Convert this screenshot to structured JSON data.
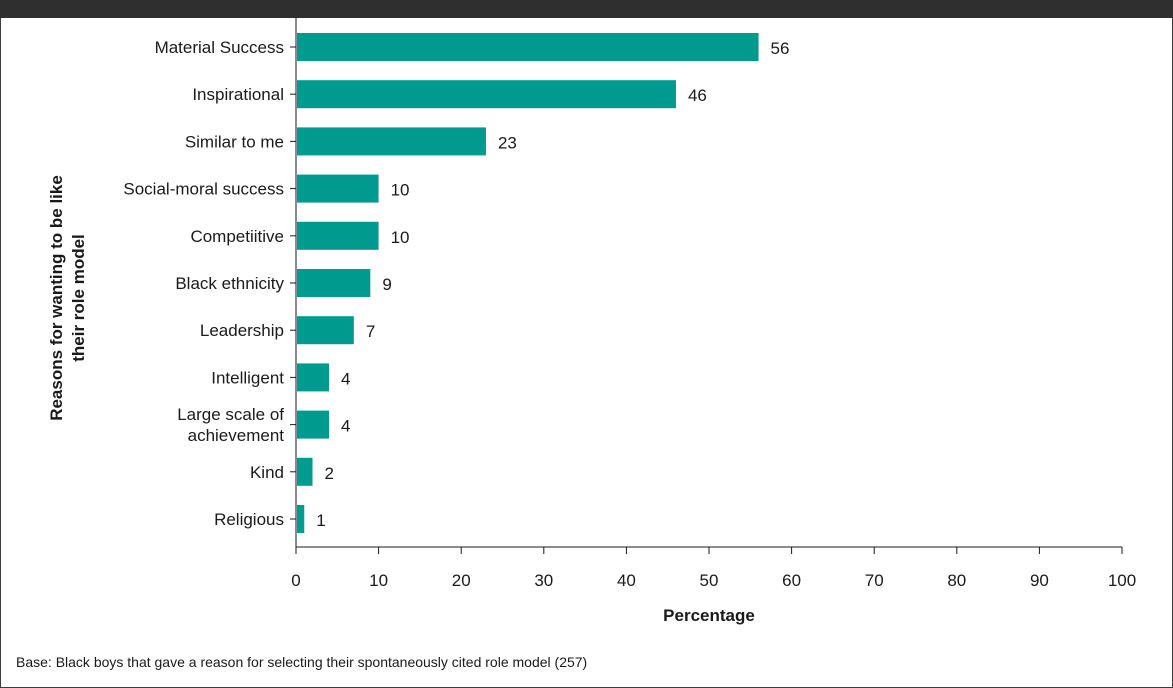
{
  "chart_data": {
    "type": "bar",
    "orientation": "horizontal",
    "categories": [
      "Material Success",
      "Inspirational",
      "Similar to me",
      "Social-moral success",
      "Competiitive",
      "Black ethnicity",
      "Leadership",
      "Intelligent",
      "Large scale of achievement",
      "Kind",
      "Religious"
    ],
    "category_lines": [
      [
        "Material Success"
      ],
      [
        "Inspirational"
      ],
      [
        "Similar to me"
      ],
      [
        "Social-moral success"
      ],
      [
        "Competiitive"
      ],
      [
        "Black ethnicity"
      ],
      [
        "Leadership"
      ],
      [
        "Intelligent"
      ],
      [
        "Large scale of",
        "achievement"
      ],
      [
        "Kind"
      ],
      [
        "Religious"
      ]
    ],
    "values": [
      56,
      46,
      23,
      10,
      10,
      9,
      7,
      4,
      4,
      2,
      1
    ],
    "data_labels": [
      "56",
      "46",
      "23",
      "10",
      "10",
      "9",
      "7",
      "4",
      "4",
      "2",
      "1"
    ],
    "xlabel": "Percentage",
    "ylabel_lines": [
      "Reasons for wanting to be like",
      "their role model"
    ],
    "xlim": [
      0,
      100
    ],
    "xticks": [
      0,
      10,
      20,
      30,
      40,
      50,
      60,
      70,
      80,
      90,
      100
    ],
    "grid": false,
    "bar_color": "#009a8f"
  },
  "footnote": "Base: Black boys that gave a reason for selecting their spontaneously cited role model (257)"
}
